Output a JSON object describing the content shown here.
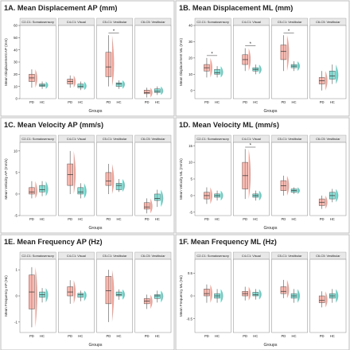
{
  "colors": {
    "PD": "#f08070",
    "HC": "#2ec4b6",
    "frame": "#bdbdbd",
    "strip": "#e8e8e8",
    "text": "#222222",
    "axis": "#333333"
  },
  "chart_data": [
    {
      "type": "box",
      "title": "1A. Mean Displacement AP (mm)",
      "ylabel": "Mean Displacement AP (mm)",
      "xlabel": "Groups",
      "groups": [
        "PD",
        "HC"
      ],
      "yticks": [
        0,
        10,
        20,
        30,
        40,
        50,
        60
      ],
      "ylim": [
        0,
        60
      ],
      "facets": [
        {
          "label": "C2-C1: Somatosensory",
          "PD": {
            "q1": 14,
            "median": 17,
            "q3": 20,
            "whisk_lo": 9,
            "whisk_hi": 24
          },
          "HC": {
            "q1": 10,
            "median": 11,
            "q3": 12,
            "whisk_lo": 8,
            "whisk_hi": 14
          },
          "sig": false
        },
        {
          "label": "C4-C1: Visual",
          "PD": {
            "q1": 12,
            "median": 14,
            "q3": 16,
            "whisk_lo": 9,
            "whisk_hi": 19
          },
          "HC": {
            "q1": 9,
            "median": 10,
            "q3": 12,
            "whisk_lo": 7,
            "whisk_hi": 14
          },
          "sig": false
        },
        {
          "label": "C5-C1: Vestibular",
          "PD": {
            "q1": 18,
            "median": 26,
            "q3": 38,
            "whisk_lo": 10,
            "whisk_hi": 52
          },
          "HC": {
            "q1": 10,
            "median": 12,
            "q3": 13,
            "whisk_lo": 8,
            "whisk_hi": 15
          },
          "sig": true
        },
        {
          "label": "C6-C5: Vestibular",
          "PD": {
            "q1": 4,
            "median": 5,
            "q3": 7,
            "whisk_lo": 1,
            "whisk_hi": 9
          },
          "HC": {
            "q1": 5,
            "median": 6,
            "q3": 8,
            "whisk_lo": 3,
            "whisk_hi": 10
          },
          "sig": false
        }
      ]
    },
    {
      "type": "box",
      "title": "1B. Mean Displacement ML (mm)",
      "ylabel": "Mean Displacement ML (mm)",
      "xlabel": "Groups",
      "groups": [
        "PD",
        "HC"
      ],
      "yticks": [
        0,
        10,
        20,
        30,
        40
      ],
      "ylim": [
        -5,
        40
      ],
      "facets": [
        {
          "label": "C2-C1: Somatosensory",
          "PD": {
            "q1": 12,
            "median": 14,
            "q3": 16,
            "whisk_lo": 8,
            "whisk_hi": 20
          },
          "HC": {
            "q1": 10,
            "median": 11,
            "q3": 13,
            "whisk_lo": 8,
            "whisk_hi": 15
          },
          "sig": true
        },
        {
          "label": "C4-C1: Visual",
          "PD": {
            "q1": 16,
            "median": 19,
            "q3": 22,
            "whisk_lo": 12,
            "whisk_hi": 26
          },
          "HC": {
            "q1": 12,
            "median": 13,
            "q3": 14,
            "whisk_lo": 10,
            "whisk_hi": 16
          },
          "sig": true
        },
        {
          "label": "C5-C1: Vestibular",
          "PD": {
            "q1": 19,
            "median": 24,
            "q3": 28,
            "whisk_lo": 12,
            "whisk_hi": 34
          },
          "HC": {
            "q1": 14,
            "median": 15,
            "q3": 16,
            "whisk_lo": 12,
            "whisk_hi": 18
          },
          "sig": true
        },
        {
          "label": "C6-C5: Vestibular",
          "PD": {
            "q1": 4,
            "median": 6,
            "q3": 8,
            "whisk_lo": 0,
            "whisk_hi": 12
          },
          "HC": {
            "q1": 7,
            "median": 9,
            "q3": 12,
            "whisk_lo": 4,
            "whisk_hi": 16
          },
          "sig": false
        }
      ]
    },
    {
      "type": "box",
      "title": "1C. Mean Velocity AP (mm/s)",
      "ylabel": "Mean Velocity AP (mm/s)",
      "xlabel": "Groups",
      "groups": [
        "PD",
        "HC"
      ],
      "yticks": [
        -5,
        0,
        5,
        10
      ],
      "ylim": [
        -5,
        12
      ],
      "facets": [
        {
          "label": "C2-C1: Somatosensory",
          "PD": {
            "q1": 0,
            "median": 0.5,
            "q3": 1.5,
            "whisk_lo": -1,
            "whisk_hi": 3
          },
          "HC": {
            "q1": 0.5,
            "median": 1,
            "q3": 2,
            "whisk_lo": -0.5,
            "whisk_hi": 3
          },
          "sig": false
        },
        {
          "label": "C4-C1: Visual",
          "PD": {
            "q1": 2,
            "median": 4.5,
            "q3": 7,
            "whisk_lo": 0,
            "whisk_hi": 10
          },
          "HC": {
            "q1": 0,
            "median": 0.5,
            "q3": 1.5,
            "whisk_lo": -1,
            "whisk_hi": 2.5
          },
          "sig": false
        },
        {
          "label": "C5-C1: Vestibular",
          "PD": {
            "q1": 2,
            "median": 3,
            "q3": 5,
            "whisk_lo": 0,
            "whisk_hi": 7
          },
          "HC": {
            "q1": 1,
            "median": 2,
            "q3": 2.5,
            "whisk_lo": 0.5,
            "whisk_hi": 3.5
          },
          "sig": false
        },
        {
          "label": "C6-C5: Vestibular",
          "PD": {
            "q1": -3.5,
            "median": -3,
            "q3": -2,
            "whisk_lo": -4.5,
            "whisk_hi": -1
          },
          "HC": {
            "q1": -1.5,
            "median": -1,
            "q3": 0,
            "whisk_lo": -3,
            "whisk_hi": 1
          },
          "sig": false
        }
      ]
    },
    {
      "type": "box",
      "title": "1D. Mean Velocity ML (mm/s)",
      "ylabel": "Mean Velocity ML (mm/s)",
      "xlabel": "Groups",
      "groups": [
        "PD",
        "HC"
      ],
      "yticks": [
        -5,
        0,
        5,
        10,
        15
      ],
      "ylim": [
        -6,
        16
      ],
      "facets": [
        {
          "label": "C2-C1: Somatosensory",
          "PD": {
            "q1": -1,
            "median": 0,
            "q3": 1,
            "whisk_lo": -2.5,
            "whisk_hi": 2.5
          },
          "HC": {
            "q1": -0.5,
            "median": 0,
            "q3": 0.5,
            "whisk_lo": -1.5,
            "whisk_hi": 1.5
          },
          "sig": false
        },
        {
          "label": "C4-C1: Visual",
          "PD": {
            "q1": 2,
            "median": 6,
            "q3": 10,
            "whisk_lo": -1,
            "whisk_hi": 14
          },
          "HC": {
            "q1": -0.5,
            "median": 0,
            "q3": 0.5,
            "whisk_lo": -1.5,
            "whisk_hi": 1.5
          },
          "sig": true
        },
        {
          "label": "C5-C1: Vestibular",
          "PD": {
            "q1": 1.5,
            "median": 3,
            "q3": 4.5,
            "whisk_lo": 0,
            "whisk_hi": 6
          },
          "HC": {
            "q1": 1,
            "median": 1.5,
            "q3": 2,
            "whisk_lo": 0.5,
            "whisk_hi": 2.5
          },
          "sig": false
        },
        {
          "label": "C6-C5: Vestibular",
          "PD": {
            "q1": -3,
            "median": -2,
            "q3": -1,
            "whisk_lo": -4,
            "whisk_hi": 0
          },
          "HC": {
            "q1": -1,
            "median": 0,
            "q3": 1,
            "whisk_lo": -2,
            "whisk_hi": 2
          },
          "sig": false
        }
      ]
    },
    {
      "type": "box",
      "title": "1E. Mean Frequency AP (Hz)",
      "ylabel": "Mean Frequency AP (Hz)",
      "xlabel": "Groups",
      "groups": [
        "PD",
        "HC"
      ],
      "yticks": [
        -1,
        0,
        1
      ],
      "ylim": [
        -1.4,
        1.4
      ],
      "facets": [
        {
          "label": "C2-C1: Somatosensory",
          "PD": {
            "q1": -0.5,
            "median": 0.15,
            "q3": 0.8,
            "whisk_lo": -1.2,
            "whisk_hi": 1.1
          },
          "HC": {
            "q1": -0.05,
            "median": 0.05,
            "q3": 0.15,
            "whisk_lo": -0.25,
            "whisk_hi": 0.3
          },
          "sig": false
        },
        {
          "label": "C4-C1: Visual",
          "PD": {
            "q1": 0,
            "median": 0.15,
            "q3": 0.35,
            "whisk_lo": -0.3,
            "whisk_hi": 0.6
          },
          "HC": {
            "q1": -0.05,
            "median": 0.05,
            "q3": 0.1,
            "whisk_lo": -0.2,
            "whisk_hi": 0.2
          },
          "sig": false
        },
        {
          "label": "C5-C1: Vestibular",
          "PD": {
            "q1": -0.3,
            "median": 0.2,
            "q3": 0.75,
            "whisk_lo": -1.0,
            "whisk_hi": 1.0
          },
          "HC": {
            "q1": 0,
            "median": 0.05,
            "q3": 0.15,
            "whisk_lo": -0.15,
            "whisk_hi": 0.25
          },
          "sig": false
        },
        {
          "label": "C6-C5: Vestibular",
          "PD": {
            "q1": -0.3,
            "median": -0.2,
            "q3": -0.1,
            "whisk_lo": -0.5,
            "whisk_hi": 0.05
          },
          "HC": {
            "q1": -0.1,
            "median": 0,
            "q3": 0.05,
            "whisk_lo": -0.25,
            "whisk_hi": 0.2
          },
          "sig": false
        }
      ]
    },
    {
      "type": "box",
      "title": "1F. Mean Frequency ML (Hz)",
      "ylabel": "Mean Frequency ML (Hz)",
      "xlabel": "Groups",
      "groups": [
        "PD",
        "HC"
      ],
      "yticks": [
        -0.5,
        0,
        0.5
      ],
      "ylim": [
        -0.8,
        0.8
      ],
      "facets": [
        {
          "label": "C2-C1: Somatosensory",
          "PD": {
            "q1": 0,
            "median": 0.05,
            "q3": 0.15,
            "whisk_lo": -0.15,
            "whisk_hi": 0.25
          },
          "HC": {
            "q1": -0.05,
            "median": 0,
            "q3": 0.05,
            "whisk_lo": -0.15,
            "whisk_hi": 0.15
          },
          "sig": false
        },
        {
          "label": "C4-C1: Visual",
          "PD": {
            "q1": 0,
            "median": 0.05,
            "q3": 0.1,
            "whisk_lo": -0.1,
            "whisk_hi": 0.2
          },
          "HC": {
            "q1": 0,
            "median": 0.03,
            "q3": 0.08,
            "whisk_lo": -0.08,
            "whisk_hi": 0.15
          },
          "sig": false
        },
        {
          "label": "C5-C1: Vestibular",
          "PD": {
            "q1": 0.05,
            "median": 0.1,
            "q3": 0.2,
            "whisk_lo": -0.05,
            "whisk_hi": 0.35
          },
          "HC": {
            "q1": -0.05,
            "median": 0,
            "q3": 0.05,
            "whisk_lo": -0.15,
            "whisk_hi": 0.15
          },
          "sig": false
        },
        {
          "label": "C6-C5: Vestibular",
          "PD": {
            "q1": -0.15,
            "median": -0.1,
            "q3": 0,
            "whisk_lo": -0.25,
            "whisk_hi": 0.1
          },
          "HC": {
            "q1": -0.05,
            "median": 0,
            "q3": 0.05,
            "whisk_lo": -0.15,
            "whisk_hi": 0.15
          },
          "sig": false
        }
      ]
    }
  ]
}
